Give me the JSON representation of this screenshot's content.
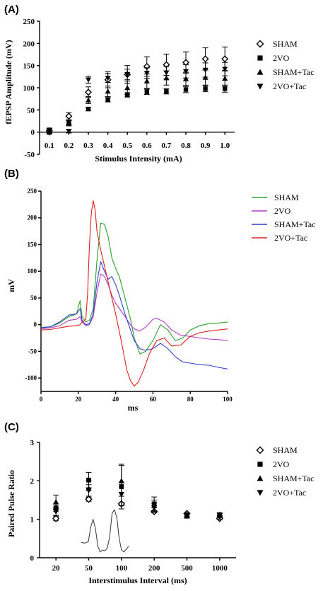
{
  "chart_data": [
    {
      "panel": "(A)",
      "type": "scatter",
      "xlabel": "Stimulus Intensity (mA)",
      "ylabel": "fEPSP Amplitude (mV)",
      "ylim": [
        -50,
        250
      ],
      "yticks": [
        "-50",
        "0",
        "50",
        "100",
        "150",
        "200",
        "250"
      ],
      "categories": [
        "0.1",
        "0.2",
        "0.3",
        "0.4",
        "0.5",
        "0.6",
        "0.7",
        "0.8",
        "0.9",
        "1.0"
      ],
      "grid": false,
      "legend_position": "right",
      "series": [
        {
          "name": "SHAM",
          "marker": "diamond-open",
          "values": [
            3,
            36,
            90,
            118,
            130,
            148,
            152,
            157,
            165,
            165
          ],
          "error": [
            6,
            8,
            12,
            18,
            20,
            22,
            24,
            24,
            25,
            27
          ]
        },
        {
          "name": "2VO",
          "marker": "square",
          "values": [
            5,
            22,
            52,
            73,
            84,
            91,
            92,
            96,
            98,
            98
          ],
          "error": [
            3,
            4,
            4,
            5,
            5,
            6,
            6,
            7,
            7,
            8
          ]
        },
        {
          "name": "SHAM+Tac",
          "marker": "triangle-up",
          "values": [
            2,
            20,
            72,
            92,
            100,
            115,
            122,
            120,
            123,
            121
          ],
          "error": [
            4,
            6,
            8,
            12,
            15,
            16,
            16,
            15,
            17,
            18
          ]
        },
        {
          "name": "2VO+Tac",
          "marker": "triangle-down",
          "values": [
            -2,
            2,
            118,
            122,
            130,
            133,
            134,
            137,
            140,
            142
          ],
          "error": [
            3,
            4,
            8,
            10,
            12,
            12,
            14,
            15,
            16,
            15
          ]
        }
      ]
    },
    {
      "panel": "(B)",
      "type": "line",
      "xlabel": "ms",
      "ylabel": "mV",
      "xlim": [
        0,
        100
      ],
      "ylim": [
        -125,
        250
      ],
      "xticks": [
        "0",
        "20",
        "40",
        "60",
        "80",
        "100"
      ],
      "yticks": [
        "-100",
        "-50",
        "0",
        "50",
        "100",
        "150",
        "200",
        "250"
      ],
      "legend_position": "right",
      "series": [
        {
          "name": "SHAM",
          "color": "#2ca02c",
          "x": [
            0,
            5,
            10,
            15,
            19,
            21,
            22,
            24,
            26,
            28,
            30,
            32,
            34,
            36,
            38,
            40,
            42,
            45,
            48,
            50,
            53,
            56,
            60,
            64,
            68,
            72,
            76,
            80,
            85,
            90,
            95,
            100
          ],
          "y": [
            -5,
            -4,
            3,
            15,
            20,
            45,
            15,
            5,
            8,
            30,
            120,
            190,
            188,
            165,
            125,
            105,
            90,
            50,
            10,
            -25,
            -55,
            -50,
            -30,
            0,
            -10,
            -30,
            -25,
            -10,
            -2,
            2,
            3,
            5
          ]
        },
        {
          "name": "2VO",
          "color": "#b040c0",
          "x": [
            0,
            5,
            10,
            15,
            19,
            21,
            22,
            24,
            26,
            28,
            30,
            32,
            34,
            36,
            38,
            40,
            42,
            45,
            48,
            50,
            53,
            56,
            60,
            62,
            66,
            70,
            75,
            80,
            85,
            90,
            95,
            100
          ],
          "y": [
            -8,
            -6,
            -2,
            8,
            10,
            15,
            5,
            -2,
            0,
            15,
            60,
            95,
            90,
            75,
            55,
            40,
            30,
            15,
            0,
            -8,
            -12,
            -5,
            10,
            12,
            5,
            -10,
            -20,
            -22,
            -25,
            -27,
            -28,
            -30
          ]
        },
        {
          "name": "SHAM+Tac",
          "color": "#3040d0",
          "x": [
            0,
            5,
            10,
            15,
            19,
            21,
            22,
            24,
            26,
            28,
            30,
            32,
            34,
            36,
            38,
            40,
            42,
            45,
            48,
            50,
            53,
            56,
            60,
            64,
            68,
            72,
            76,
            80,
            85,
            90,
            95,
            100
          ],
          "y": [
            -6,
            -4,
            5,
            18,
            20,
            30,
            8,
            0,
            2,
            20,
            80,
            118,
            100,
            85,
            90,
            75,
            55,
            20,
            -10,
            -30,
            -45,
            -48,
            -45,
            -35,
            -45,
            -60,
            -70,
            -72,
            -75,
            -76,
            -80,
            -83
          ]
        },
        {
          "name": "2VO+Tac",
          "color": "#e02020",
          "x": [
            0,
            5,
            10,
            15,
            19,
            21,
            22,
            24,
            25,
            26,
            27,
            28,
            29,
            30,
            32,
            34,
            36,
            38,
            40,
            43,
            46,
            48,
            50,
            52,
            55,
            58,
            62,
            66,
            70,
            75,
            80,
            85,
            90,
            95,
            100
          ],
          "y": [
            -10,
            -9,
            -6,
            -3,
            -2,
            0,
            5,
            10,
            60,
            150,
            210,
            232,
            215,
            175,
            140,
            110,
            80,
            50,
            20,
            -30,
            -85,
            -105,
            -115,
            -108,
            -85,
            -55,
            -30,
            -25,
            -40,
            -38,
            -22,
            -15,
            -12,
            -10,
            -8
          ]
        }
      ]
    },
    {
      "panel": "(C)",
      "type": "scatter",
      "xlabel": "Interstimulus Interval (ms)",
      "ylabel": "Paired Pulse Ratio",
      "ylim": [
        0,
        3
      ],
      "yticks": [
        "0",
        "1",
        "2",
        "3"
      ],
      "categories": [
        "20",
        "50",
        "100",
        "200",
        "500",
        "1000"
      ],
      "legend_position": "right",
      "series": [
        {
          "name": "SHAM",
          "marker": "diamond-open",
          "values": [
            1.02,
            1.52,
            1.4,
            1.2,
            1.15,
            1.02
          ],
          "error": [
            0.06,
            0.05,
            0.04,
            0.03,
            0.02,
            0.02
          ]
        },
        {
          "name": "2VO",
          "marker": "square",
          "values": [
            1.3,
            2.02,
            1.85,
            1.4,
            1.12,
            1.1
          ],
          "error": [
            0.1,
            0.2,
            0.58,
            0.18,
            0.05,
            0.05
          ]
        },
        {
          "name": "SHAM+Tac",
          "marker": "triangle-up",
          "values": [
            1.45,
            1.8,
            2.0,
            1.35,
            1.1,
            1.12
          ],
          "error": [
            0.18,
            0.2,
            0.4,
            0.15,
            0.05,
            0.05
          ]
        },
        {
          "name": "2VO+Tac",
          "marker": "triangle-down",
          "values": [
            1.2,
            1.75,
            1.65,
            1.3,
            1.08,
            1.05
          ],
          "error": [
            0.1,
            0.15,
            0.3,
            0.12,
            0.05,
            0.05
          ]
        }
      ],
      "inset_trace": {
        "x": [
          0,
          3,
          6,
          8,
          10,
          12,
          14,
          16,
          18,
          20,
          22,
          24,
          26,
          28,
          30,
          32,
          34,
          36,
          38,
          40
        ],
        "y": [
          0.4,
          0.38,
          0.42,
          0.8,
          1.0,
          0.75,
          0.3,
          0.15,
          0.2,
          0.18,
          0.25,
          0.55,
          1.15,
          1.25,
          1.05,
          0.5,
          0.2,
          0.15,
          0.22,
          0.3
        ]
      }
    }
  ]
}
